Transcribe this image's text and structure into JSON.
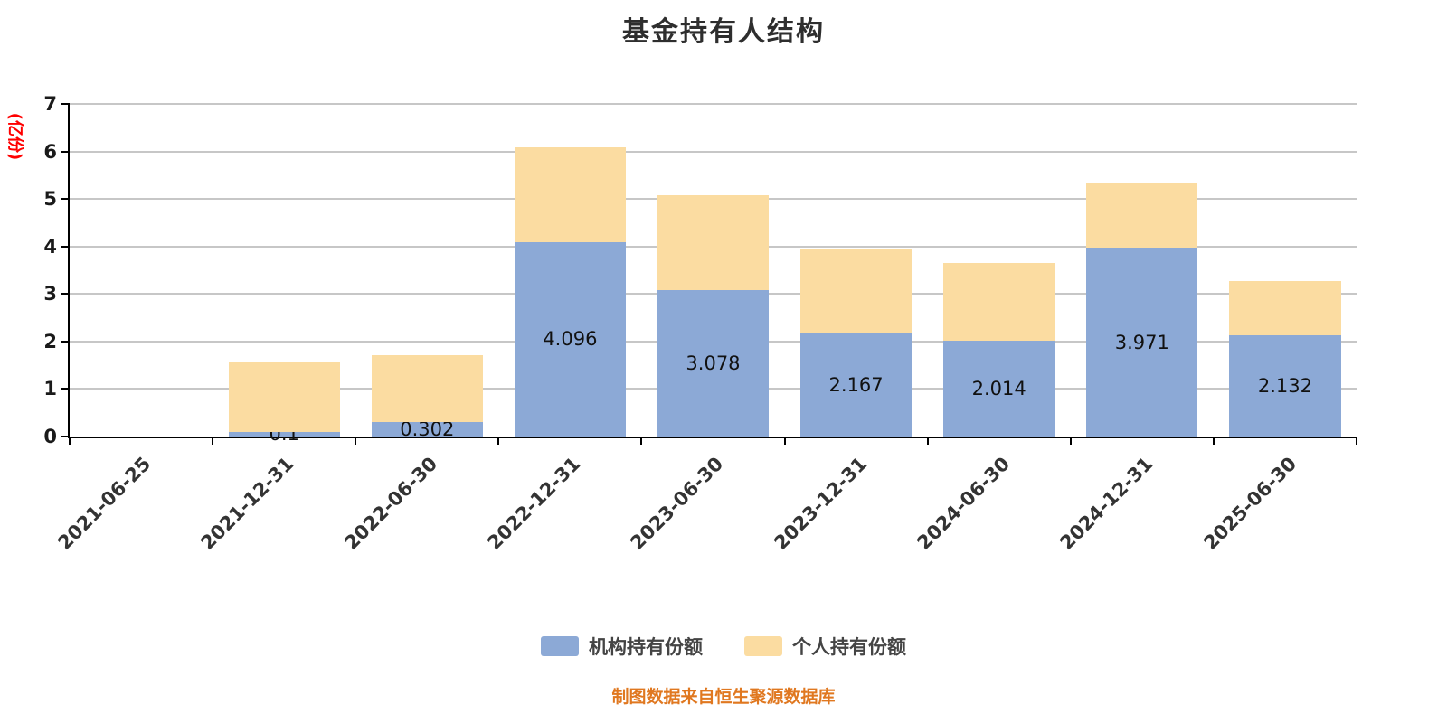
{
  "page": {
    "source_note": "制图数据来自恒生聚源数据库"
  },
  "colors": {
    "institution_series": "#8CA9D6",
    "personal_series": "#FBDCA1",
    "ylabel_text": "#FF0000",
    "source_note_text": "#E07820",
    "gridline": "#8F8F8F",
    "axis": "#000000",
    "title_text": "#2E2E2E"
  },
  "chart_data": {
    "type": "bar",
    "stacked": true,
    "title": "基金持有人结构",
    "ylabel": "(亿份)",
    "xlabel": "",
    "ylim": [
      0,
      7
    ],
    "yticks": [
      0,
      1,
      2,
      3,
      4,
      5,
      6,
      7
    ],
    "grid": true,
    "legend_position": "bottom",
    "categories": [
      "2021-06-25",
      "2021-12-31",
      "2022-06-30",
      "2022-12-31",
      "2023-06-30",
      "2023-12-31",
      "2024-06-30",
      "2024-12-31",
      "2025-06-30"
    ],
    "series": [
      {
        "name": "机构持有份额",
        "color": "#8CA9D6",
        "values": [
          0,
          0.1,
          0.302,
          4.096,
          3.078,
          2.167,
          2.014,
          3.971,
          2.132
        ],
        "labels": [
          "",
          "0.1",
          "0.302",
          "4.096",
          "3.078",
          "2.167",
          "2.014",
          "3.971",
          "2.132"
        ]
      },
      {
        "name": "个人持有份额",
        "color": "#FBDCA1",
        "values": [
          0,
          1.46,
          1.41,
          2.0,
          2.0,
          1.78,
          1.64,
          1.35,
          1.14
        ],
        "labels": [
          "",
          "",
          "",
          "",
          "",
          "",
          "",
          "",
          ""
        ]
      }
    ]
  }
}
